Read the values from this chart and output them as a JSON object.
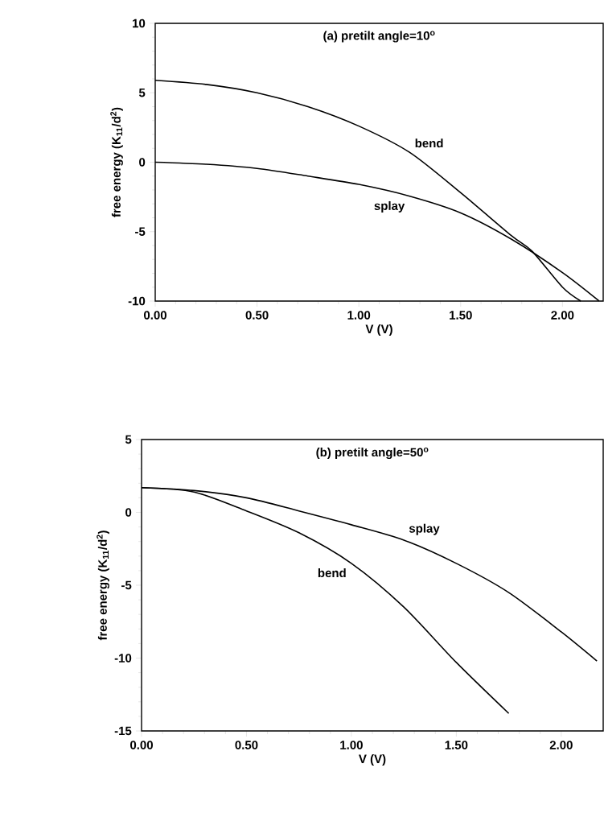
{
  "chart_data": [
    {
      "type": "line",
      "title": "(a)  pretilt angle=10$^{o}$",
      "xlabel": "V (V)",
      "ylabel": "free energy  (K$_{11}$/d$^{2}$)",
      "xlim": [
        0,
        2.2
      ],
      "ylim": [
        -10,
        10
      ],
      "xticks": [
        {
          "value": 0,
          "label": "0.00"
        },
        {
          "value": 0.5,
          "label": "0.50"
        },
        {
          "value": 1,
          "label": "1.00"
        },
        {
          "value": 1.5,
          "label": "1.50"
        },
        {
          "value": 2,
          "label": "2.00"
        }
      ],
      "yticks": [
        -10,
        -5,
        0,
        5,
        10
      ],
      "series": [
        {
          "name": "bend",
          "color": "#000000",
          "x": [
            0,
            0.25,
            0.5,
            0.75,
            1.0,
            1.25,
            1.5,
            1.75,
            1.85,
            2.0,
            2.09
          ],
          "values": [
            5.9,
            5.6,
            5.0,
            4.0,
            2.6,
            0.7,
            -2.2,
            -5.3,
            -6.4,
            -9.0,
            -10
          ]
        },
        {
          "name": "splay",
          "color": "#000000",
          "x": [
            0,
            0.25,
            0.5,
            0.75,
            1.0,
            1.25,
            1.5,
            1.75,
            2.0,
            2.18
          ],
          "values": [
            0,
            -0.15,
            -0.45,
            -1.0,
            -1.6,
            -2.45,
            -3.65,
            -5.55,
            -7.95,
            -10
          ]
        }
      ]
    },
    {
      "type": "line",
      "title": "(b)  pretilt angle=50$^{o}$",
      "xlabel": "V (V)",
      "ylabel": "free energy  (K$_{11}$/d$^{2}$)",
      "xlim": [
        0,
        2.2
      ],
      "ylim": [
        -15,
        5
      ],
      "xticks": [
        {
          "value": 0,
          "label": "0.00"
        },
        {
          "value": 0.5,
          "label": "0.50"
        },
        {
          "value": 1,
          "label": "1.00"
        },
        {
          "value": 1.5,
          "label": "1.50"
        },
        {
          "value": 2,
          "label": "2.00"
        }
      ],
      "yticks": [
        -15,
        -10,
        -5,
        0,
        5
      ],
      "series": [
        {
          "name": "bend",
          "color": "#000000",
          "x": [
            0,
            0.25,
            0.5,
            0.75,
            1.0,
            1.25,
            1.5,
            1.75
          ],
          "values": [
            1.7,
            1.4,
            0.1,
            -1.4,
            -3.5,
            -6.5,
            -10.3,
            -13.8
          ]
        },
        {
          "name": "splay",
          "color": "#000000",
          "x": [
            0,
            0.25,
            0.5,
            0.75,
            1.0,
            1.25,
            1.5,
            1.75,
            2.0,
            2.17
          ],
          "values": [
            1.7,
            1.5,
            1.0,
            0.1,
            -0.85,
            -1.9,
            -3.5,
            -5.5,
            -8.2,
            -10.2
          ]
        }
      ]
    }
  ]
}
